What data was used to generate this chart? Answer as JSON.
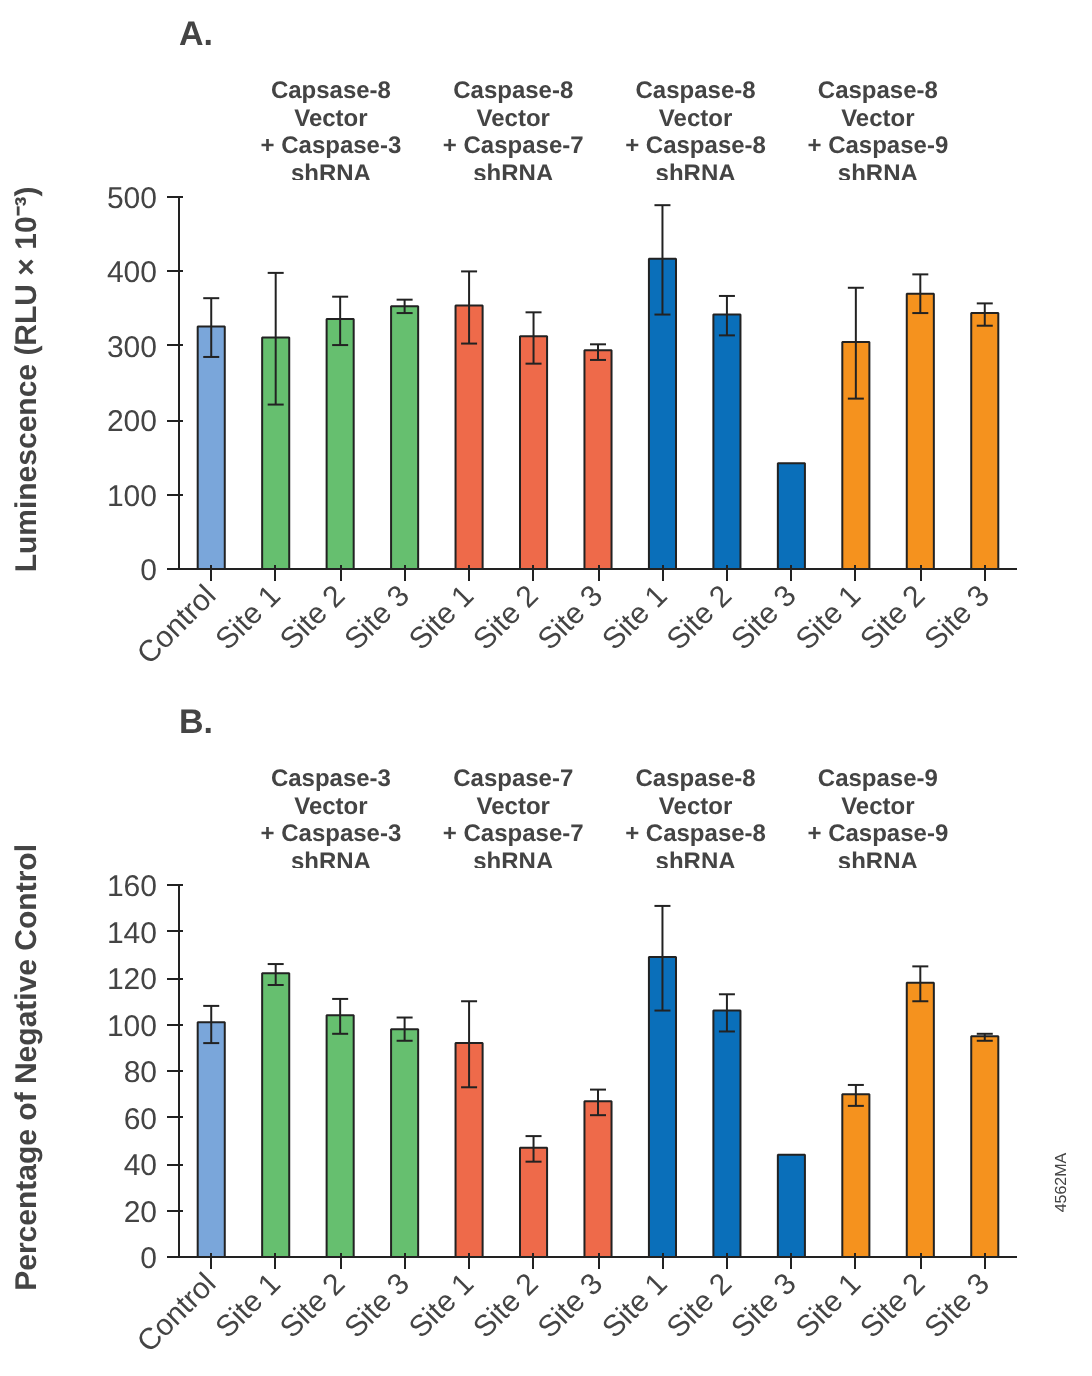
{
  "chart_data": [
    {
      "type": "bar",
      "title": "A.",
      "ylabel": "Luminescence (RLU × 10⁻³)",
      "categories": [
        "Control",
        "Site 1",
        "Site 2",
        "Site 3",
        "Site 1",
        "Site 2",
        "Site 3",
        "Site 1",
        "Site 2",
        "Site 3",
        "Site 1",
        "Site 2",
        "Site 3"
      ],
      "values": [
        326,
        311,
        336,
        353,
        354,
        313,
        294,
        417,
        342,
        142,
        305,
        370,
        344
      ],
      "errors": [
        [
          285,
          364
        ],
        [
          221,
          398
        ],
        [
          301,
          366
        ],
        [
          344,
          362
        ],
        [
          303,
          400
        ],
        [
          276,
          345
        ],
        [
          281,
          302
        ],
        [
          342,
          489
        ],
        [
          314,
          367
        ],
        null,
        [
          229,
          378
        ],
        [
          344,
          396
        ],
        [
          327,
          357
        ]
      ],
      "colors": [
        "#7aa6da",
        "#66bf6f",
        "#66bf6f",
        "#66bf6f",
        "#ee6a4a",
        "#ee6a4a",
        "#ee6a4a",
        "#0a6fba",
        "#0a6fba",
        "#0a6fba",
        "#f5921e",
        "#f5921e",
        "#f5921e"
      ],
      "ylim": [
        0,
        500
      ],
      "yticks": [
        0,
        100,
        200,
        300,
        400,
        500
      ],
      "grid": false,
      "annotations": [
        "Capsase-8\nVector\n+ Caspase-3\nshRNA",
        "Caspase-8\nVector\n+ Caspase-7\nshRNA",
        "Caspase-8\nVector\n+ Caspase-8\nshRNA",
        "Caspase-8\nVector\n+ Caspase-9\nshRNA"
      ]
    },
    {
      "type": "bar",
      "title": "B.",
      "ylabel": "Percentage of Negative Control",
      "categories": [
        "Control",
        "Site 1",
        "Site 2",
        "Site 3",
        "Site 1",
        "Site 2",
        "Site 3",
        "Site 1",
        "Site 2",
        "Site 3",
        "Site 1",
        "Site 2",
        "Site 3"
      ],
      "values": [
        101,
        122,
        104,
        98,
        92,
        47,
        67,
        129,
        106,
        44,
        70,
        118,
        95
      ],
      "errors": [
        [
          92,
          108
        ],
        [
          117,
          126
        ],
        [
          96,
          111
        ],
        [
          93,
          103
        ],
        [
          73,
          110
        ],
        [
          41,
          52
        ],
        [
          61,
          72
        ],
        [
          106,
          151
        ],
        [
          97,
          113
        ],
        null,
        [
          65,
          74
        ],
        [
          110,
          125
        ],
        [
          93,
          96
        ]
      ],
      "colors": [
        "#7aa6da",
        "#66bf6f",
        "#66bf6f",
        "#66bf6f",
        "#ee6a4a",
        "#ee6a4a",
        "#ee6a4a",
        "#0a6fba",
        "#0a6fba",
        "#0a6fba",
        "#f5921e",
        "#f5921e",
        "#f5921e"
      ],
      "ylim": [
        0,
        160
      ],
      "yticks": [
        0,
        20,
        40,
        60,
        80,
        100,
        120,
        140,
        160
      ],
      "grid": false,
      "annotations": [
        "Caspase-3\nVector\n+ Caspase-3\nshRNA",
        "Caspase-7\nVector\n+ Caspase-7\nshRNA",
        "Caspase-8\nVector\n+ Caspase-8\nshRNA",
        "Caspase-9\nVector\n+ Caspase-9\nshRNA",
        "4562MA"
      ]
    }
  ]
}
